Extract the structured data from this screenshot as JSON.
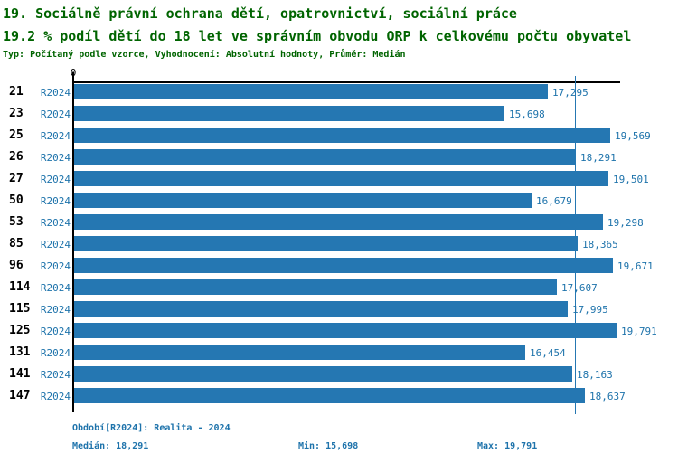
{
  "header": {
    "title": "19. Sociálně právní ochrana dětí, opatrovnictví, sociální práce",
    "subtitle": "19.2 % podíl dětí do 18 let ve správním obvodu ORP k celkovému počtu obyvatel",
    "meta": "Typ: Počítaný podle vzorce, Vyhodnocení: Absolutní hodnoty, Průměr: Medián"
  },
  "colors": {
    "bar": "#2577b2",
    "blue_text": "#1e73ab",
    "title_green": "#006400",
    "axis": "#000000"
  },
  "chart_data": {
    "type": "bar",
    "orientation": "horizontal",
    "categories": [
      "21",
      "23",
      "25",
      "26",
      "27",
      "50",
      "53",
      "85",
      "96",
      "114",
      "115",
      "125",
      "131",
      "141",
      "147"
    ],
    "series_label": "R2024",
    "values": [
      17295,
      15698,
      19569,
      18291,
      19501,
      16679,
      19298,
      18365,
      19671,
      17607,
      17995,
      19791,
      16454,
      18163,
      18637
    ],
    "value_labels": [
      "17,295",
      "15,698",
      "19,569",
      "18,291",
      "19,501",
      "16,679",
      "19,298",
      "18,365",
      "19,671",
      "17,607",
      "17,995",
      "19,791",
      "16,454",
      "18,163",
      "18,637"
    ],
    "x_axis_zero_label": "0",
    "xlim": [
      0,
      19791
    ],
    "median": 18291,
    "min": 15698,
    "max": 19791,
    "grid": false,
    "legend": "none",
    "median_line": true
  },
  "footer": {
    "period": "Období[R2024]: Realita - 2024",
    "median_label": "Medián: 18,291",
    "min_label": "Min: 15,698",
    "max_label": "Max: 19,791"
  }
}
